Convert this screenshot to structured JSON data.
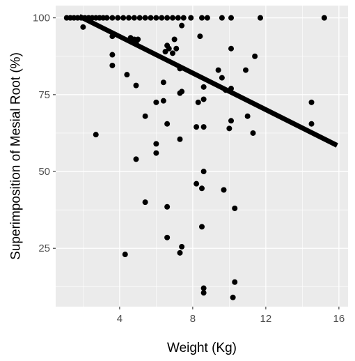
{
  "chart_data": {
    "type": "scatter",
    "title": "",
    "xlabel": "Weight (Kg)",
    "ylabel": "Superimposition of Mesial Root (%)",
    "xlim": [
      0.5,
      16.5
    ],
    "ylim": [
      6,
      104
    ],
    "x_ticks": [
      4,
      8,
      12,
      16
    ],
    "y_ticks": [
      25,
      50,
      75,
      100
    ],
    "grid": true,
    "colors": {
      "panel": "#ebebeb",
      "grid": "#ffffff",
      "point": "#000000",
      "line": "#000000"
    },
    "points": [
      [
        1.1,
        100
      ],
      [
        1.3,
        100
      ],
      [
        1.5,
        100
      ],
      [
        1.7,
        100
      ],
      [
        1.9,
        100
      ],
      [
        2.1,
        100
      ],
      [
        2.3,
        100
      ],
      [
        2.5,
        100
      ],
      [
        2.7,
        100
      ],
      [
        2.9,
        100
      ],
      [
        3.1,
        100
      ],
      [
        3.3,
        100
      ],
      [
        3.6,
        100
      ],
      [
        3.9,
        100
      ],
      [
        4.2,
        100
      ],
      [
        4.5,
        100
      ],
      [
        4.8,
        100
      ],
      [
        5.1,
        100
      ],
      [
        5.4,
        100
      ],
      [
        5.7,
        100
      ],
      [
        6.0,
        100
      ],
      [
        6.3,
        100
      ],
      [
        6.6,
        100
      ],
      [
        6.9,
        100
      ],
      [
        7.2,
        100
      ],
      [
        7.5,
        100
      ],
      [
        7.9,
        100
      ],
      [
        8.5,
        100
      ],
      [
        8.8,
        100
      ],
      [
        9.6,
        100
      ],
      [
        10.1,
        100
      ],
      [
        11.7,
        100
      ],
      [
        15.2,
        100
      ],
      [
        2.0,
        97
      ],
      [
        7.4,
        97.5
      ],
      [
        8.4,
        94
      ],
      [
        3.6,
        94
      ],
      [
        4.6,
        93.5
      ],
      [
        4.8,
        93
      ],
      [
        5.0,
        93
      ],
      [
        6.6,
        91
      ],
      [
        7.0,
        93
      ],
      [
        6.7,
        90
      ],
      [
        7.1,
        90
      ],
      [
        6.5,
        89
      ],
      [
        6.9,
        88.5
      ],
      [
        4.9,
        92
      ],
      [
        10.1,
        90
      ],
      [
        11.4,
        87.5
      ],
      [
        3.6,
        88
      ],
      [
        3.6,
        84.5
      ],
      [
        7.3,
        83.5
      ],
      [
        9.4,
        83
      ],
      [
        4.4,
        81.5
      ],
      [
        10.9,
        83
      ],
      [
        9.6,
        80.5
      ],
      [
        6.4,
        79
      ],
      [
        4.9,
        78
      ],
      [
        8.6,
        77.5
      ],
      [
        9.8,
        76.5
      ],
      [
        10.1,
        77
      ],
      [
        7.3,
        75.5
      ],
      [
        7.4,
        76
      ],
      [
        8.6,
        73.5
      ],
      [
        8.3,
        72.5
      ],
      [
        6.0,
        72.5
      ],
      [
        6.4,
        73
      ],
      [
        14.5,
        72.5
      ],
      [
        5.4,
        68
      ],
      [
        11.0,
        68
      ],
      [
        10.1,
        66.5
      ],
      [
        6.6,
        65.5
      ],
      [
        10.0,
        64
      ],
      [
        8.6,
        64.5
      ],
      [
        8.2,
        64.5
      ],
      [
        14.5,
        65.5
      ],
      [
        11.3,
        62.5
      ],
      [
        2.7,
        62
      ],
      [
        7.3,
        60.5
      ],
      [
        6.0,
        59
      ],
      [
        6.0,
        56
      ],
      [
        4.9,
        54
      ],
      [
        8.6,
        50
      ],
      [
        8.2,
        46
      ],
      [
        9.7,
        44
      ],
      [
        8.5,
        44.5
      ],
      [
        5.4,
        40
      ],
      [
        6.6,
        38.5
      ],
      [
        10.3,
        38
      ],
      [
        8.5,
        32
      ],
      [
        6.6,
        28.5
      ],
      [
        7.4,
        25.5
      ],
      [
        7.3,
        23.5
      ],
      [
        4.3,
        23
      ],
      [
        10.3,
        14
      ],
      [
        8.6,
        12
      ],
      [
        8.6,
        10.5
      ],
      [
        10.2,
        9
      ]
    ],
    "trend_line": {
      "x": [
        1.8,
        15.9
      ],
      "y": [
        100.5,
        58.5
      ]
    }
  }
}
